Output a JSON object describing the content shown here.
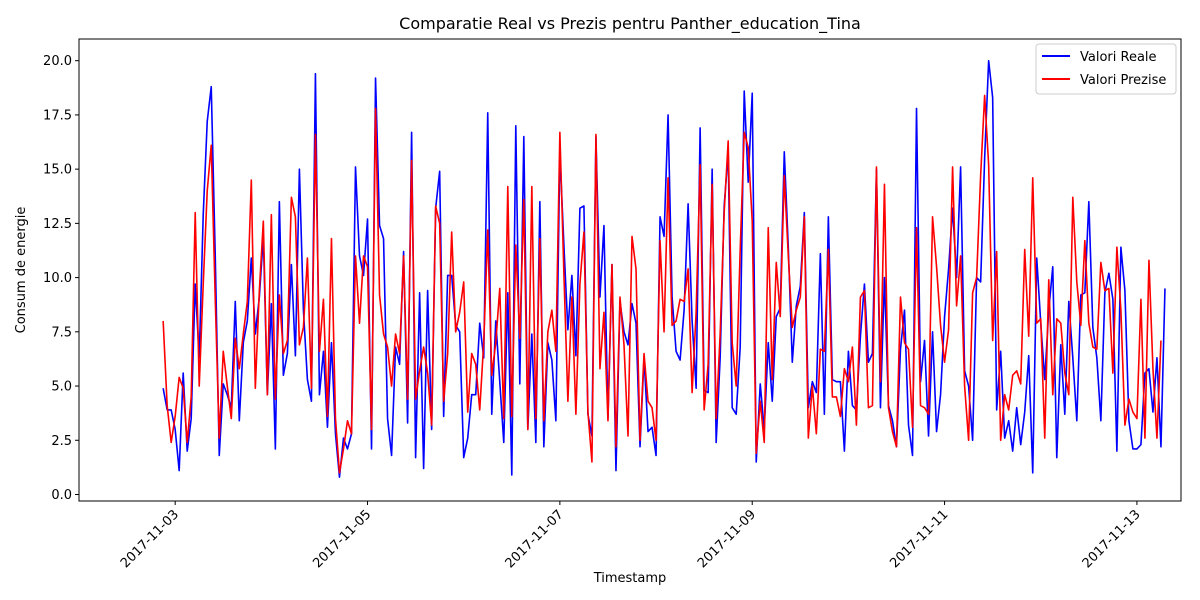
{
  "chart_data": {
    "type": "line",
    "title": "Comparatie Real vs Prezis pentru Panther_education_Tina",
    "xlabel": "Timestamp",
    "ylabel": "Consum de energie",
    "x_range_days": [
      "2017-11-02 00:00",
      "2017-11-13 11:00"
    ],
    "x_ticks": [
      "2017-11-03",
      "2017-11-05",
      "2017-11-07",
      "2017-11-09",
      "2017-11-11",
      "2017-11-13"
    ],
    "ylim": [
      -0.3,
      21.0
    ],
    "y_ticks": [
      0.0,
      2.5,
      5.0,
      7.5,
      10.0,
      12.5,
      15.0,
      17.5,
      20.0
    ],
    "y_tick_labels": [
      "0.0",
      "2.5",
      "5.0",
      "7.5",
      "10.0",
      "12.5",
      "15.0",
      "17.5",
      "20.0"
    ],
    "grid": false,
    "legend_position": "top-right",
    "x_start": "2017-11-02 21:00",
    "x_step_hours": 1,
    "series": [
      {
        "name": "Valori Reale",
        "color": "#0000ff",
        "values": [
          4.9,
          3.9,
          3.9,
          3.0,
          1.1,
          5.6,
          2.0,
          3.5,
          9.7,
          6.3,
          12.9,
          17.2,
          18.8,
          11.0,
          1.8,
          5.1,
          4.6,
          4.0,
          8.9,
          3.4,
          7.0,
          8.0,
          10.9,
          7.4,
          9.1,
          11.9,
          4.6,
          8.8,
          2.1,
          13.5,
          5.5,
          6.5,
          10.6,
          6.4,
          15.0,
          8.5,
          5.3,
          4.3,
          19.4,
          4.6,
          6.6,
          3.1,
          7.0,
          2.8,
          0.8,
          2.6,
          2.1,
          2.8,
          15.1,
          11.0,
          10.1,
          12.7,
          2.1,
          19.2,
          12.4,
          11.8,
          3.5,
          1.8,
          6.8,
          6.0,
          11.2,
          3.3,
          16.7,
          1.7,
          9.3,
          1.2,
          9.4,
          3.0,
          13.2,
          14.9,
          3.6,
          10.1,
          10.1,
          7.8,
          7.5,
          1.7,
          2.6,
          4.6,
          4.6,
          7.9,
          6.3,
          17.6,
          3.7,
          8.0,
          5.2,
          2.4,
          9.3,
          0.9,
          17.0,
          5.1,
          16.5,
          3.0,
          7.4,
          2.4,
          13.5,
          2.2,
          7.0,
          6.2,
          3.4,
          15.8,
          11.5,
          7.6,
          10.1,
          6.4,
          13.2,
          13.3,
          3.7,
          2.7,
          16.5,
          9.1,
          12.4,
          3.5,
          10.6,
          1.1,
          8.9,
          7.5,
          6.9,
          8.8,
          7.9,
          2.2,
          6.3,
          2.9,
          3.1,
          1.8,
          12.8,
          11.9,
          17.5,
          9.1,
          6.6,
          6.2,
          8.5,
          13.4,
          8.0,
          4.9,
          16.9,
          4.8,
          4.7,
          15.0,
          2.4,
          6.3,
          13.3,
          15.8,
          4.0,
          3.7,
          6.8,
          18.6,
          14.4,
          18.5,
          1.5,
          5.1,
          3.0,
          7.0,
          4.3,
          8.2,
          8.6,
          15.8,
          11.4,
          6.1,
          8.7,
          9.6,
          13.0,
          4.0,
          5.2,
          4.7,
          11.1,
          3.7,
          12.8,
          5.3,
          5.2,
          5.2,
          2.0,
          6.6,
          4.1,
          3.9,
          7.3,
          9.7,
          6.1,
          6.5,
          15.0,
          4.0,
          10.0,
          4.1,
          3.4,
          2.2,
          6.7,
          8.5,
          3.2,
          1.8,
          17.8,
          5.2,
          7.1,
          2.7,
          7.5,
          2.9,
          4.6,
          8.2,
          10.4,
          13.2,
          10.0,
          15.1,
          5.7,
          5.0,
          2.5,
          10.0,
          9.8,
          15.5,
          20.0,
          18.3,
          3.9,
          6.6,
          2.6,
          3.4,
          2.0,
          4.0,
          2.3,
          3.8,
          6.4,
          1.0,
          10.9,
          7.9,
          5.3,
          8.5,
          10.5,
          1.7,
          6.9,
          3.7,
          8.9,
          6.3,
          3.4,
          9.2,
          9.3,
          13.5,
          7.7,
          6.3,
          3.4,
          9.3,
          10.2,
          9.0,
          2.0,
          11.4,
          9.4,
          3.4,
          2.1,
          2.1,
          2.3,
          5.6,
          5.8,
          3.8,
          6.3,
          2.2,
          9.5
        ]
      },
      {
        "name": "Valori Prezise",
        "color": "#ff0000",
        "values": [
          8.0,
          4.1,
          2.4,
          3.6,
          5.4,
          4.9,
          2.4,
          4.5,
          13.0,
          5.0,
          9.7,
          14.0,
          16.1,
          9.0,
          2.6,
          6.6,
          5.0,
          3.5,
          7.2,
          5.8,
          7.4,
          8.9,
          14.5,
          4.9,
          9.4,
          12.6,
          4.6,
          12.9,
          4.4,
          9.2,
          6.5,
          7.1,
          13.7,
          12.8,
          6.9,
          7.7,
          10.9,
          4.9,
          16.6,
          6.6,
          9.0,
          3.6,
          11.8,
          3.5,
          1.0,
          2.1,
          3.4,
          2.8,
          11.0,
          7.9,
          11.0,
          10.5,
          3.0,
          17.8,
          9.2,
          7.4,
          6.8,
          5.0,
          7.4,
          6.5,
          11.0,
          4.4,
          15.4,
          4.4,
          5.7,
          6.8,
          5.6,
          3.2,
          13.3,
          12.5,
          4.3,
          6.5,
          12.1,
          7.5,
          8.4,
          9.8,
          3.8,
          6.5,
          6.0,
          3.9,
          7.0,
          12.2,
          5.5,
          7.0,
          9.5,
          3.5,
          14.2,
          3.6,
          11.5,
          7.2,
          13.6,
          3.0,
          14.2,
          3.5,
          11.8,
          3.4,
          7.5,
          8.5,
          6.6,
          16.7,
          10.2,
          4.3,
          9.1,
          3.7,
          9.7,
          12.1,
          3.8,
          1.5,
          16.6,
          5.8,
          8.4,
          3.4,
          10.6,
          2.2,
          9.1,
          6.9,
          2.7,
          11.9,
          10.4,
          2.5,
          6.5,
          4.3,
          4.0,
          2.5,
          11.7,
          7.5,
          14.6,
          7.8,
          8.0,
          9.0,
          8.9,
          10.4,
          4.7,
          8.4,
          15.2,
          3.9,
          6.0,
          14.3,
          3.5,
          7.4,
          13.0,
          16.3,
          7.0,
          5.0,
          11.3,
          16.7,
          16.0,
          12.6,
          1.9,
          4.3,
          2.4,
          12.3,
          5.3,
          10.7,
          8.2,
          14.7,
          11.0,
          7.7,
          8.5,
          9.1,
          12.8,
          2.6,
          5.0,
          2.8,
          6.7,
          6.6,
          11.3,
          4.5,
          4.5,
          3.6,
          5.8,
          5.2,
          6.8,
          3.2,
          9.1,
          9.4,
          4.0,
          4.1,
          15.1,
          5.2,
          14.3,
          4.0,
          2.9,
          2.2,
          9.1,
          7.0,
          6.7,
          3.1,
          12.3,
          4.1,
          4.0,
          3.7,
          12.8,
          10.5,
          7.8,
          6.1,
          7.6,
          15.1,
          8.7,
          11.0,
          5.0,
          2.5,
          9.3,
          10.0,
          14.7,
          18.4,
          15.2,
          7.1,
          11.2,
          2.5,
          4.6,
          3.9,
          5.5,
          5.7,
          5.1,
          11.3,
          7.3,
          14.6,
          7.9,
          8.1,
          2.6,
          9.9,
          4.6,
          8.1,
          7.9,
          5.6,
          4.6,
          13.7,
          9.8,
          7.8,
          11.7,
          7.9,
          6.8,
          6.7,
          10.7,
          9.4,
          9.5,
          5.6,
          11.4,
          8.5,
          3.2,
          4.4,
          3.8,
          3.5,
          9.0,
          2.6,
          10.8,
          5.8,
          2.6,
          7.1
        ]
      }
    ]
  }
}
